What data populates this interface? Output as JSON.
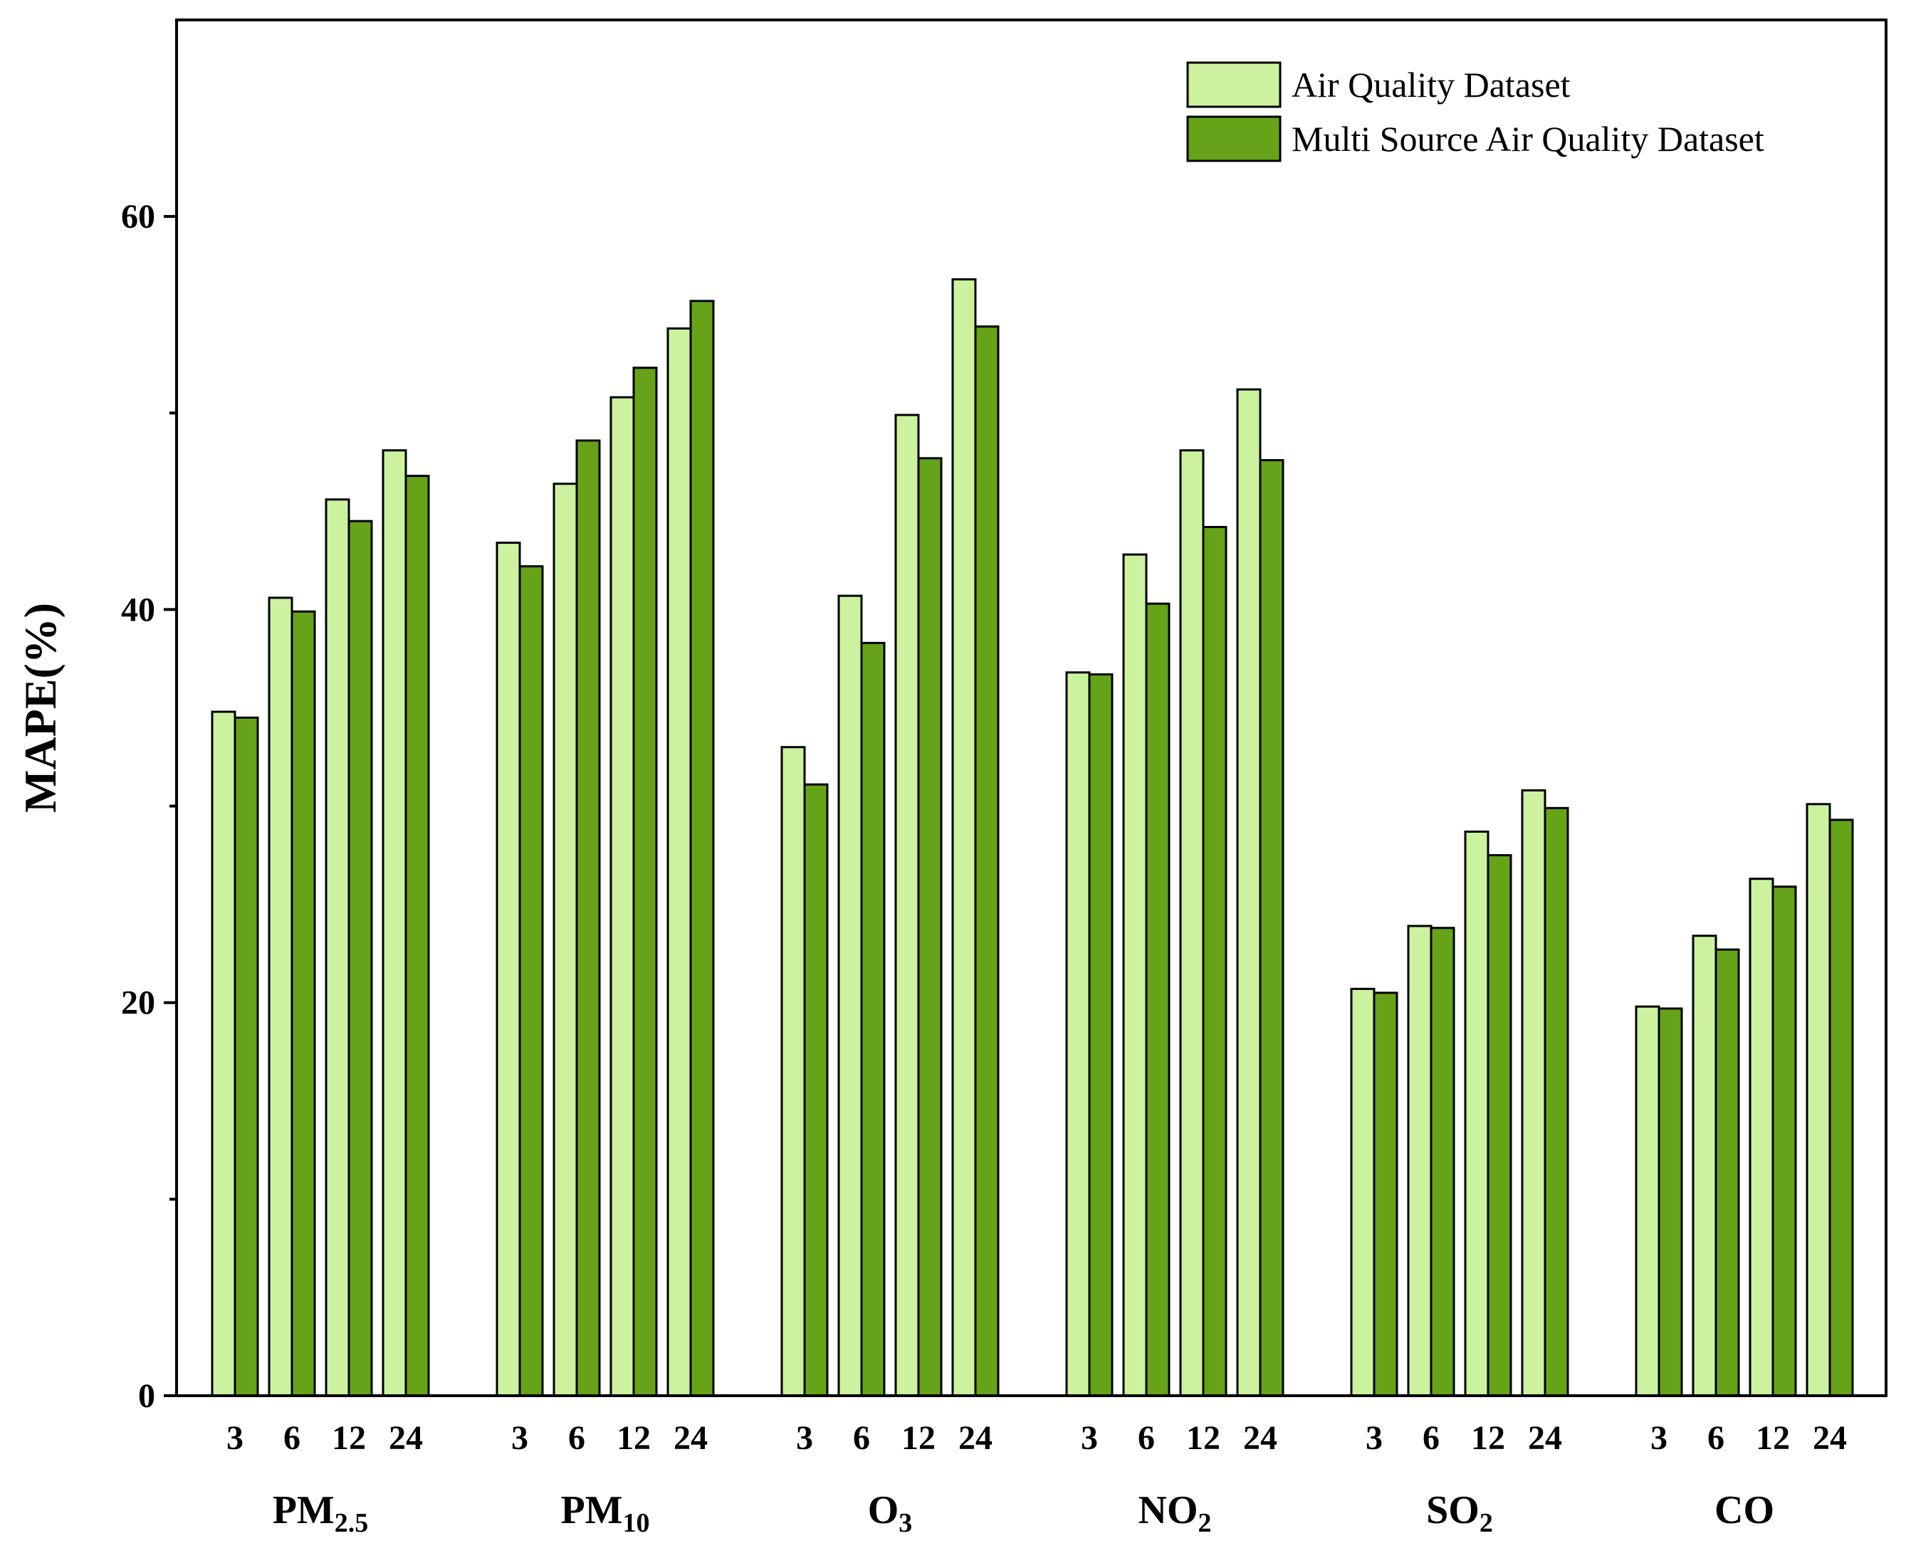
{
  "chart_data": {
    "type": "bar",
    "title": "",
    "xlabel": "",
    "ylabel": "MAPE(%)",
    "ylim": [
      0,
      70
    ],
    "yticks": [
      0,
      20,
      40,
      60
    ],
    "grid": false,
    "legend_position": "top-right",
    "groups": [
      {
        "main": "PM",
        "sub": "2.5"
      },
      {
        "main": "PM",
        "sub": "10"
      },
      {
        "main": "O",
        "sub": "3"
      },
      {
        "main": "NO",
        "sub": "2"
      },
      {
        "main": "SO",
        "sub": "2"
      },
      {
        "main": "CO",
        "sub": ""
      }
    ],
    "categories": [
      "3",
      "6",
      "12",
      "24"
    ],
    "series": [
      {
        "name": "Air Quality Dataset",
        "color": "#ccf2a0",
        "values": [
          [
            34.8,
            40.6,
            45.6,
            48.1
          ],
          [
            43.4,
            46.4,
            50.8,
            54.3
          ],
          [
            33.0,
            40.7,
            49.9,
            56.8
          ],
          [
            36.8,
            42.8,
            48.1,
            51.2
          ],
          [
            20.7,
            23.9,
            28.7,
            30.8
          ],
          [
            19.8,
            23.4,
            26.3,
            30.1
          ]
        ]
      },
      {
        "name": "Multi Source Air Quality Dataset",
        "color": "#66a318",
        "values": [
          [
            34.5,
            39.9,
            44.5,
            46.8
          ],
          [
            42.2,
            48.6,
            52.3,
            55.7
          ],
          [
            31.1,
            38.3,
            47.7,
            54.4
          ],
          [
            36.7,
            40.3,
            44.2,
            47.6
          ],
          [
            20.5,
            23.8,
            27.5,
            29.9
          ],
          [
            19.7,
            22.7,
            25.9,
            29.3
          ]
        ]
      }
    ]
  }
}
